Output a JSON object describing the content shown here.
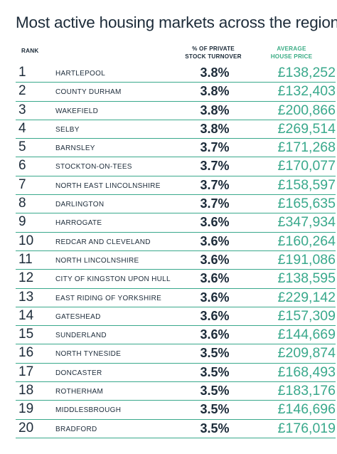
{
  "title": "Most active housing markets across the region",
  "headers": {
    "rank": "RANK",
    "pct_line1": "% OF PRIVATE",
    "pct_line2": "STOCK TURNOVER",
    "price_line1": "AVERAGE",
    "price_line2": "HOUSE PRICE"
  },
  "rows": [
    {
      "rank": "1",
      "name": "HARTLEPOOL",
      "pct": "3.8%",
      "price": "£138,252"
    },
    {
      "rank": "2",
      "name": "COUNTY DURHAM",
      "pct": "3.8%",
      "price": "£132,403"
    },
    {
      "rank": "3",
      "name": "WAKEFIELD",
      "pct": "3.8%",
      "price": "£200,866"
    },
    {
      "rank": "4",
      "name": "SELBY",
      "pct": "3.8%",
      "price": "£269,514"
    },
    {
      "rank": "5",
      "name": "BARNSLEY",
      "pct": "3.7%",
      "price": "£171,268"
    },
    {
      "rank": "6",
      "name": "STOCKTON-ON-TEES",
      "pct": "3.7%",
      "price": "£170,077"
    },
    {
      "rank": "7",
      "name": "NORTH EAST LINCOLNSHIRE",
      "pct": "3.7%",
      "price": "£158,597"
    },
    {
      "rank": "8",
      "name": "DARLINGTON",
      "pct": "3.7%",
      "price": "£165,635"
    },
    {
      "rank": "9",
      "name": "HARROGATE",
      "pct": "3.6%",
      "price": "£347,934"
    },
    {
      "rank": "10",
      "name": "REDCAR AND CLEVELAND",
      "pct": "3.6%",
      "price": "£160,264"
    },
    {
      "rank": "11",
      "name": "NORTH LINCOLNSHIRE",
      "pct": "3.6%",
      "price": "£191,086"
    },
    {
      "rank": "12",
      "name": "CITY OF KINGSTON UPON HULL",
      "pct": "3.6%",
      "price": "£138,595"
    },
    {
      "rank": "13",
      "name": "EAST RIDING OF YORKSHIRE",
      "pct": "3.6%",
      "price": "£229,142"
    },
    {
      "rank": "14",
      "name": "GATESHEAD",
      "pct": "3.6%",
      "price": "£157,309"
    },
    {
      "rank": "15",
      "name": "SUNDERLAND",
      "pct": "3.6%",
      "price": "£144,669"
    },
    {
      "rank": "16",
      "name": "NORTH TYNESIDE",
      "pct": "3.5%",
      "price": "£209,874"
    },
    {
      "rank": "17",
      "name": "DONCASTER",
      "pct": "3.5%",
      "price": "£168,493"
    },
    {
      "rank": "18",
      "name": "ROTHERHAM",
      "pct": "3.5%",
      "price": "£183,176"
    },
    {
      "rank": "19",
      "name": "MIDDLESBROUGH",
      "pct": "3.5%",
      "price": "£146,696"
    },
    {
      "rank": "20",
      "name": "BRADFORD",
      "pct": "3.5%",
      "price": "£176,019"
    }
  ],
  "colors": {
    "accent": "#3aa98c",
    "text": "#1c2b39"
  }
}
